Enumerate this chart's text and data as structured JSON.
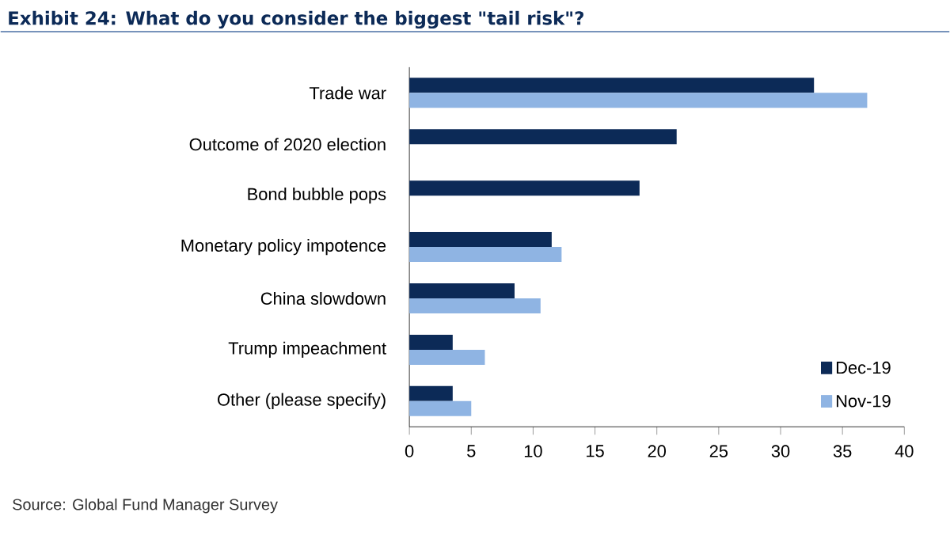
{
  "chart_data": {
    "type": "bar",
    "orientation": "horizontal",
    "title": "Exhibit 24: What do you consider the biggest \"tail risk\"?",
    "categories": [
      "Trade war",
      "Outcome of 2020 election",
      "Bond bubble pops",
      "Monetary policy impotence",
      "China slowdown",
      "Trump impeachment",
      "Other (please specify)"
    ],
    "series": [
      {
        "name": "Dec-19",
        "color": "#0c2a57",
        "values": [
          32.7,
          21.6,
          18.6,
          11.5,
          8.5,
          3.5,
          3.5
        ]
      },
      {
        "name": "Nov-19",
        "color": "#8fb4e3",
        "values": [
          37.0,
          null,
          null,
          12.3,
          10.6,
          6.1,
          5.0
        ]
      }
    ],
    "xlim": [
      0,
      40
    ],
    "xticks": [
      0,
      5,
      10,
      15,
      20,
      25,
      30,
      35,
      40
    ],
    "legend": "bottom right",
    "annotations": [
      "Source: Global Fund Manager Survey"
    ]
  }
}
